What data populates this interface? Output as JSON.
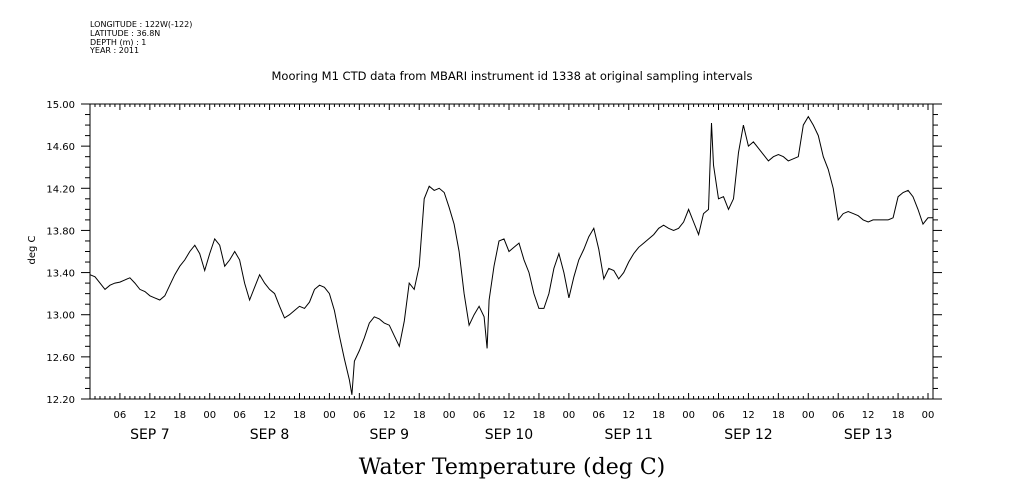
{
  "metadata": [
    "LONGITUDE : 122W(-122)",
    "LATITUDE : 36.8N",
    "DEPTH (m) : 1",
    "YEAR : 2011"
  ],
  "chart_data": {
    "type": "line",
    "title": "Mooring M1 CTD data from MBARI instrument id 1338 at original sampling intervals",
    "xlabel": "Water Temperature (deg C)",
    "ylabel": "deg C",
    "ylim": [
      12.2,
      15.0
    ],
    "y_ticks": [
      "12.20",
      "12.60",
      "13.00",
      "13.40",
      "13.80",
      "14.20",
      "14.60",
      "15.00"
    ],
    "hour_tick_labels": [
      "06",
      "12",
      "18",
      "00",
      "06",
      "12",
      "18",
      "00",
      "06",
      "12",
      "18",
      "00",
      "06",
      "12",
      "18",
      "00",
      "06",
      "12",
      "18",
      "00",
      "06",
      "12",
      "18",
      "00",
      "06",
      "12",
      "18",
      "00"
    ],
    "day_labels": [
      "SEP  7",
      "SEP  8",
      "SEP  9",
      "SEP 10",
      "SEP 11",
      "SEP 12",
      "SEP 13"
    ],
    "x_range_hours": [
      0,
      169
    ],
    "series": [
      {
        "points": [
          [
            0,
            13.38
          ],
          [
            1,
            13.36
          ],
          [
            2,
            13.3
          ],
          [
            3,
            13.24
          ],
          [
            4,
            13.28
          ],
          [
            5,
            13.3
          ],
          [
            6,
            13.31
          ],
          [
            7,
            13.33
          ],
          [
            8,
            13.35
          ],
          [
            9,
            13.3
          ],
          [
            10,
            13.24
          ],
          [
            11,
            13.22
          ],
          [
            12,
            13.18
          ],
          [
            13,
            13.16
          ],
          [
            14,
            13.14
          ],
          [
            15,
            13.18
          ],
          [
            16,
            13.28
          ],
          [
            17,
            13.38
          ],
          [
            18,
            13.46
          ],
          [
            19,
            13.52
          ],
          [
            20,
            13.6
          ],
          [
            21,
            13.66
          ],
          [
            22,
            13.58
          ],
          [
            23,
            13.42
          ],
          [
            24,
            13.58
          ],
          [
            25,
            13.72
          ],
          [
            26,
            13.66
          ],
          [
            27,
            13.46
          ],
          [
            28,
            13.52
          ],
          [
            29,
            13.6
          ],
          [
            30,
            13.52
          ],
          [
            31,
            13.3
          ],
          [
            32,
            13.14
          ],
          [
            33,
            13.26
          ],
          [
            34,
            13.38
          ],
          [
            35,
            13.3
          ],
          [
            36,
            13.24
          ],
          [
            37,
            13.2
          ],
          [
            38,
            13.08
          ],
          [
            39,
            12.97
          ],
          [
            40,
            13.0
          ],
          [
            41,
            13.04
          ],
          [
            42,
            13.08
          ],
          [
            43,
            13.06
          ],
          [
            44,
            13.12
          ],
          [
            45,
            13.24
          ],
          [
            46,
            13.28
          ],
          [
            47,
            13.26
          ],
          [
            48,
            13.2
          ],
          [
            49,
            13.04
          ],
          [
            50,
            12.8
          ],
          [
            51,
            12.58
          ],
          [
            52,
            12.38
          ],
          [
            52.5,
            12.24
          ],
          [
            53,
            12.56
          ],
          [
            54,
            12.66
          ],
          [
            55,
            12.78
          ],
          [
            56,
            12.92
          ],
          [
            57,
            12.98
          ],
          [
            58,
            12.96
          ],
          [
            59,
            12.92
          ],
          [
            60,
            12.9
          ],
          [
            61,
            12.8
          ],
          [
            62,
            12.7
          ],
          [
            63,
            12.94
          ],
          [
            64,
            13.3
          ],
          [
            65,
            13.24
          ],
          [
            66,
            13.46
          ],
          [
            67,
            14.1
          ],
          [
            68,
            14.22
          ],
          [
            69,
            14.18
          ],
          [
            70,
            14.2
          ],
          [
            71,
            14.16
          ],
          [
            72,
            14.02
          ],
          [
            73,
            13.86
          ],
          [
            74,
            13.6
          ],
          [
            75,
            13.2
          ],
          [
            76,
            12.9
          ],
          [
            77,
            13.0
          ],
          [
            78,
            13.08
          ],
          [
            79,
            12.98
          ],
          [
            79.6,
            12.68
          ],
          [
            80,
            13.14
          ],
          [
            81,
            13.46
          ],
          [
            82,
            13.7
          ],
          [
            83,
            13.72
          ],
          [
            84,
            13.6
          ],
          [
            85,
            13.64
          ],
          [
            86,
            13.68
          ],
          [
            87,
            13.52
          ],
          [
            88,
            13.4
          ],
          [
            89,
            13.2
          ],
          [
            90,
            13.06
          ],
          [
            91,
            13.06
          ],
          [
            92,
            13.2
          ],
          [
            93,
            13.44
          ],
          [
            94,
            13.58
          ],
          [
            95,
            13.4
          ],
          [
            96,
            13.16
          ],
          [
            97,
            13.36
          ],
          [
            98,
            13.52
          ],
          [
            99,
            13.62
          ],
          [
            100,
            13.74
          ],
          [
            101,
            13.82
          ],
          [
            102,
            13.62
          ],
          [
            103,
            13.34
          ],
          [
            104,
            13.44
          ],
          [
            105,
            13.42
          ],
          [
            106,
            13.34
          ],
          [
            107,
            13.4
          ],
          [
            108,
            13.5
          ],
          [
            109,
            13.58
          ],
          [
            110,
            13.64
          ],
          [
            111,
            13.68
          ],
          [
            112,
            13.72
          ],
          [
            113,
            13.76
          ],
          [
            114,
            13.82
          ],
          [
            115,
            13.85
          ],
          [
            116,
            13.82
          ],
          [
            117,
            13.8
          ],
          [
            118,
            13.82
          ],
          [
            119,
            13.88
          ],
          [
            120,
            14.0
          ],
          [
            121,
            13.88
          ],
          [
            122,
            13.76
          ],
          [
            123,
            13.96
          ],
          [
            124,
            14.0
          ],
          [
            124.6,
            14.82
          ],
          [
            125,
            14.42
          ],
          [
            126,
            14.1
          ],
          [
            127,
            14.12
          ],
          [
            128,
            14.0
          ],
          [
            129,
            14.1
          ],
          [
            130,
            14.54
          ],
          [
            131,
            14.8
          ],
          [
            132,
            14.6
          ],
          [
            133,
            14.64
          ],
          [
            134,
            14.58
          ],
          [
            135,
            14.52
          ],
          [
            136,
            14.46
          ],
          [
            137,
            14.5
          ],
          [
            138,
            14.52
          ],
          [
            139,
            14.5
          ],
          [
            140,
            14.46
          ],
          [
            141,
            14.48
          ],
          [
            142,
            14.5
          ],
          [
            143,
            14.8
          ],
          [
            144,
            14.88
          ],
          [
            145,
            14.8
          ],
          [
            146,
            14.7
          ],
          [
            147,
            14.5
          ],
          [
            148,
            14.38
          ],
          [
            149,
            14.2
          ],
          [
            150,
            13.9
          ],
          [
            151,
            13.96
          ],
          [
            152,
            13.98
          ],
          [
            153,
            13.96
          ],
          [
            154,
            13.94
          ],
          [
            155,
            13.9
          ],
          [
            156,
            13.88
          ],
          [
            157,
            13.9
          ],
          [
            158,
            13.9
          ],
          [
            159,
            13.9
          ],
          [
            160,
            13.9
          ],
          [
            161,
            13.92
          ],
          [
            162,
            14.12
          ],
          [
            163,
            14.16
          ],
          [
            164,
            14.18
          ],
          [
            165,
            14.12
          ],
          [
            166,
            14.0
          ],
          [
            167,
            13.86
          ],
          [
            168,
            13.92
          ],
          [
            169,
            13.92
          ]
        ]
      }
    ]
  }
}
